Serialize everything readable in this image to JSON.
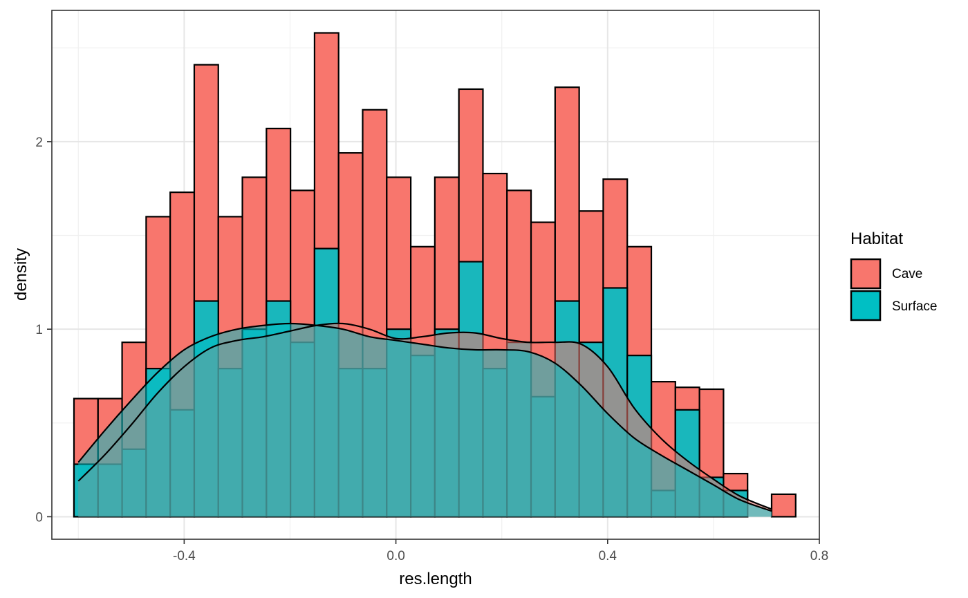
{
  "chart_data": {
    "type": "bar",
    "subtype": "overlapping histogram with density curves",
    "xlabel": "res.length",
    "ylabel": "density",
    "xlim": [
      -0.65,
      0.8
    ],
    "ylim": [
      -0.12,
      2.7
    ],
    "x_ticks": [
      -0.4,
      0.0,
      0.4,
      0.8
    ],
    "x_tick_labels": [
      "-0.4",
      "0.0",
      "0.4",
      "0.8"
    ],
    "y_ticks": [
      0,
      1,
      2
    ],
    "y_tick_labels": [
      "0",
      "1",
      "2"
    ],
    "grid": true,
    "legend": {
      "title": "Habitat",
      "position": "right"
    },
    "bin_width": 0.04545,
    "bin_start": -0.6082,
    "series": [
      {
        "name": "Cave",
        "color": "#F8766D",
        "values": [
          0.63,
          0.63,
          0.93,
          1.6,
          1.73,
          2.41,
          1.6,
          1.81,
          2.07,
          1.74,
          2.58,
          1.94,
          2.17,
          1.81,
          1.44,
          1.81,
          2.28,
          1.83,
          1.74,
          1.57,
          2.29,
          1.63,
          1.8,
          1.44,
          0.72,
          0.69,
          0.68,
          0.23,
          0.0,
          0.12
        ],
        "density_x": [
          -0.6,
          -0.55,
          -0.5,
          -0.45,
          -0.4,
          -0.35,
          -0.3,
          -0.25,
          -0.2,
          -0.15,
          -0.1,
          -0.05,
          0.0,
          0.05,
          0.1,
          0.15,
          0.2,
          0.25,
          0.3,
          0.35,
          0.4,
          0.45,
          0.5,
          0.55,
          0.6,
          0.65,
          0.71
        ],
        "density_y": [
          0.19,
          0.33,
          0.49,
          0.66,
          0.8,
          0.9,
          0.94,
          0.96,
          0.99,
          1.02,
          1.03,
          1.0,
          0.95,
          0.96,
          0.98,
          0.98,
          0.95,
          0.93,
          0.93,
          0.92,
          0.8,
          0.58,
          0.42,
          0.3,
          0.2,
          0.11,
          0.04
        ]
      },
      {
        "name": "Surface",
        "color": "#00BFC4",
        "values": [
          0.28,
          0.28,
          0.36,
          0.79,
          0.57,
          1.15,
          0.79,
          1.0,
          1.15,
          0.93,
          1.43,
          0.79,
          0.79,
          1.0,
          0.86,
          1.0,
          1.36,
          0.79,
          0.93,
          0.64,
          1.15,
          0.93,
          1.22,
          0.86,
          0.14,
          0.57,
          0.21,
          0.14,
          0.0,
          0.0
        ],
        "density_x": [
          -0.6,
          -0.55,
          -0.5,
          -0.45,
          -0.4,
          -0.35,
          -0.3,
          -0.25,
          -0.2,
          -0.15,
          -0.1,
          -0.05,
          0.0,
          0.05,
          0.1,
          0.15,
          0.2,
          0.25,
          0.3,
          0.35,
          0.4,
          0.45,
          0.5,
          0.55,
          0.6,
          0.65,
          0.71
        ],
        "density_y": [
          0.29,
          0.46,
          0.62,
          0.77,
          0.89,
          0.96,
          1.0,
          1.02,
          1.03,
          1.02,
          1.0,
          0.96,
          0.94,
          0.92,
          0.9,
          0.89,
          0.89,
          0.88,
          0.82,
          0.7,
          0.55,
          0.42,
          0.33,
          0.25,
          0.17,
          0.09,
          0.03
        ]
      }
    ]
  }
}
